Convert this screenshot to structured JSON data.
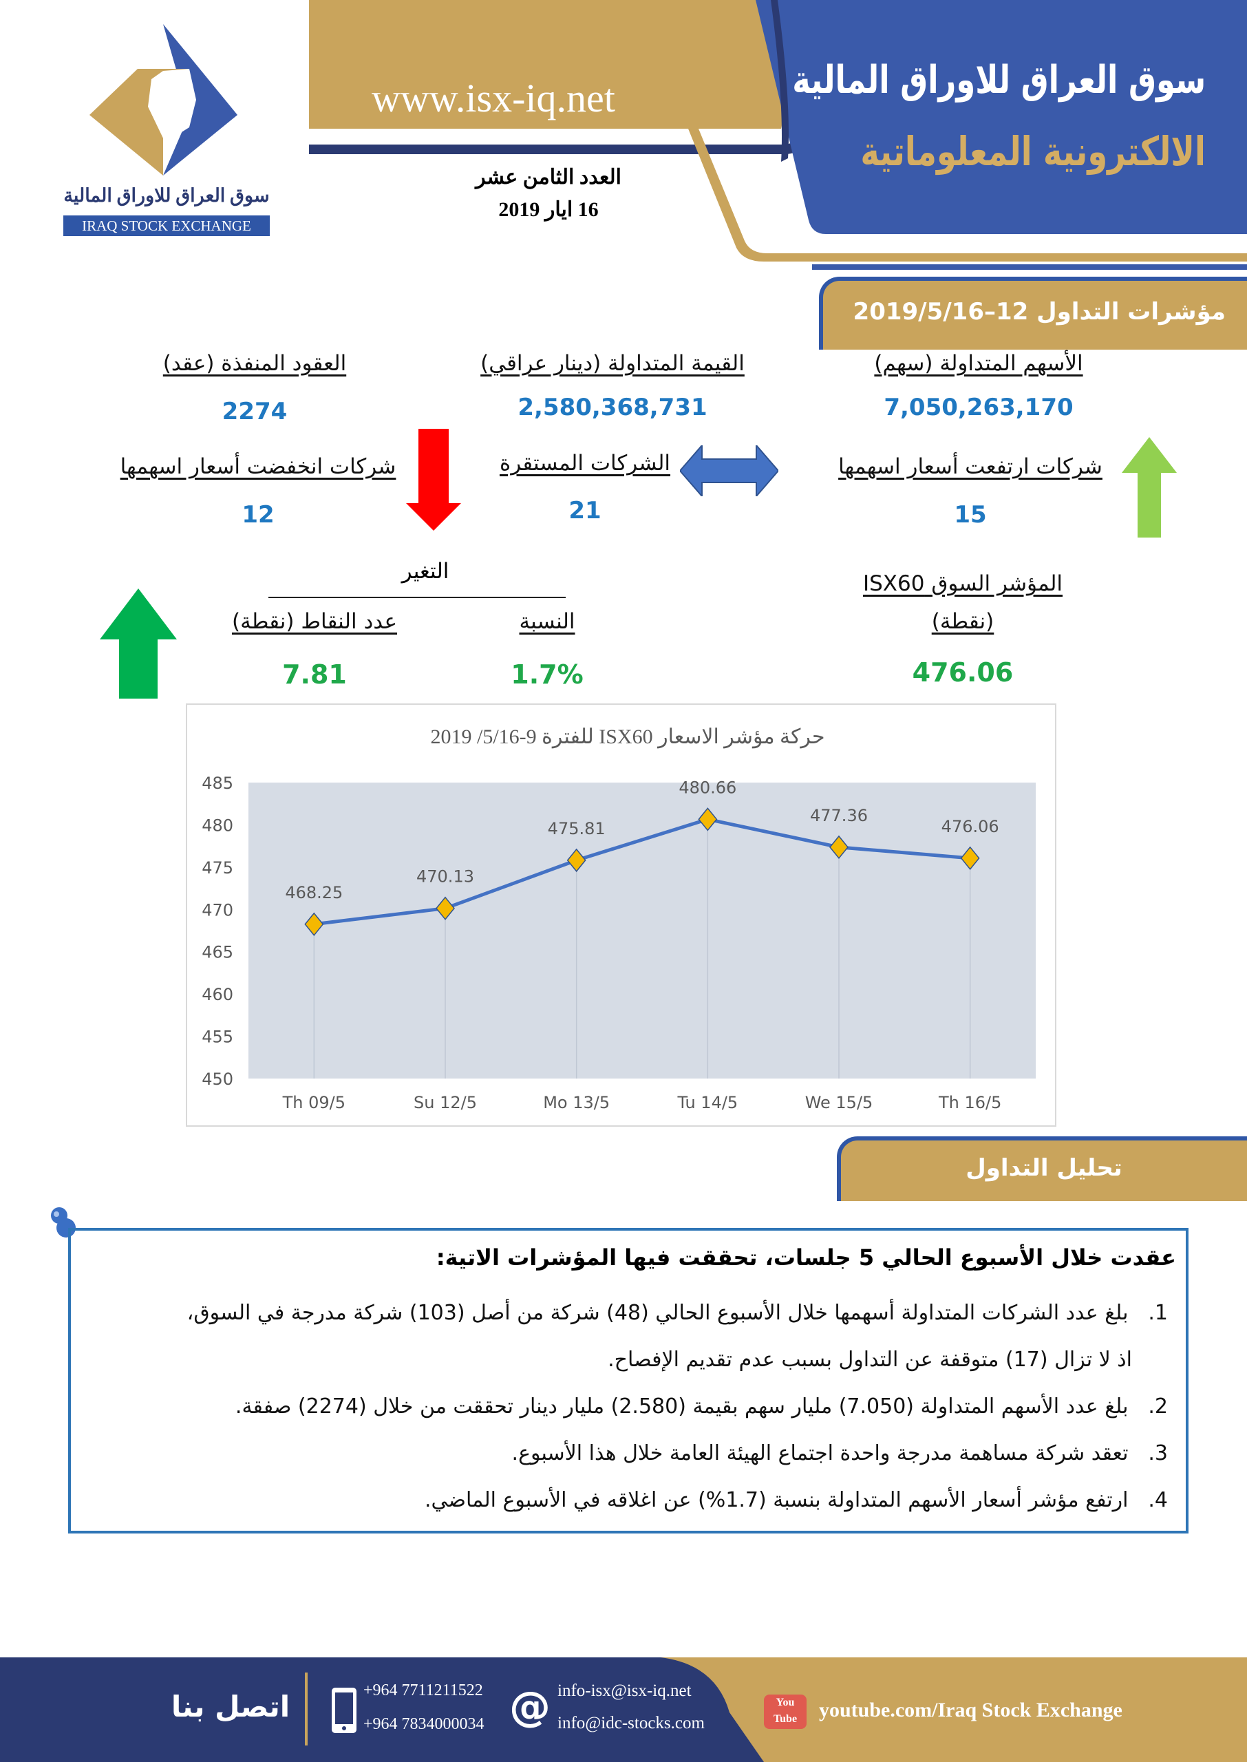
{
  "header": {
    "logo_text_ar": "سوق العراق للاوراق المالية",
    "logo_text_en": "IRAQ STOCK EXCHANGE",
    "website": "www.isx-iq.net",
    "title_line1": "سوق العراق للاوراق المالية",
    "title_line2": "الالكترونية المعلوماتية",
    "issue": "العدد الثامن عشر",
    "date": "16 ايار 2019",
    "colors": {
      "navy": "#2b3a72",
      "blue": "#3a5aaa",
      "gold": "#c9a45c"
    }
  },
  "indicators": {
    "section_title": "مؤشرات التداول 12–2019/5/16",
    "shares_label": "الأسهم المتداولة (سهم)",
    "shares_value": "7,050,263,170",
    "value_label": "القيمة المتداولة (دينار عراقي)",
    "value_value": "2,580,368,731",
    "contracts_label": "العقود المنفذة (عقد)",
    "contracts_value": "2274",
    "rising_label": "شركات ارتفعت أسعار اسهمها",
    "rising_value": "15",
    "stable_label": "الشركات المستقرة",
    "stable_value": "21",
    "falling_label": "شركات انخفضت أسعار اسهمها",
    "falling_value": "12",
    "index_label": "المؤشر السوق ISX60",
    "index_unit": "(نقطة)",
    "index_value": "476.06",
    "change_label": "التغير",
    "change_pct_label": "النسبة",
    "change_pct_value": "1.7%",
    "change_points_label": "عدد النقاط (نقطة)",
    "change_points_value": "7.81"
  },
  "chart_data": {
    "type": "line",
    "title": "حركة مؤشر الاسعار ISX60 للفترة 9-5/16/ 2019",
    "categories": [
      "Th 09/5",
      "Su 12/5",
      "Mo 13/5",
      "Tu 14/5",
      "We 15/5",
      "Th 16/5"
    ],
    "values": [
      468.25,
      470.13,
      475.81,
      480.66,
      477.36,
      476.06
    ],
    "data_labels": [
      "468.25",
      "470.13",
      "475.81",
      "480.66",
      "477.36",
      "476.06"
    ],
    "ylim": [
      450,
      485
    ],
    "yticks": [
      "450",
      "455",
      "460",
      "465",
      "470",
      "475",
      "480",
      "485"
    ],
    "xlabel": "",
    "ylabel": "",
    "grid": "vertical drop lines",
    "legend": "none",
    "colors": {
      "line": "#4472c4",
      "marker": "#f5b800",
      "plot_bg": "#d6dce5"
    }
  },
  "analysis": {
    "section_title": "تحليل التداول",
    "intro": "عقدت خلال الأسبوع الحالي 5 جلسات، تحققت فيها المؤشرات الاتية:",
    "items": [
      {
        "num": "1.",
        "line1": "بلغ عدد الشركات المتداولة أسهمها خلال الأسبوع الحالي (48) شركة من أصل (103) شركة مدرجة في السوق،",
        "line2": "اذ لا تزال (17) متوقفة عن التداول بسبب عدم تقديم الإفصاح."
      },
      {
        "num": "2.",
        "line1": "بلغ عدد الأسهم المتداولة (7.050) مليار سهم بقيمة (2.580) مليار دينار تحققت من خلال (2274) صفقة."
      },
      {
        "num": "3.",
        "line1": "تعقد شركة مساهمة مدرجة واحدة اجتماع الهيئة العامة خلال هذا الأسبوع."
      },
      {
        "num": "4.",
        "line1": "ارتفع مؤشر أسعار الأسهم المتداولة بنسبة (1.7%) عن اغلاقه في الأسبوع الماضي."
      }
    ]
  },
  "footer": {
    "contact_label": "اتصل بنا",
    "phone1": "+964 7711211522",
    "phone2": "+964 7834000034",
    "email1": "info-isx@isx-iq.net",
    "email2": "info@idc-stocks.com",
    "youtube_icon_text": "You Tube",
    "youtube": "youtube.com/Iraq Stock Exchange"
  }
}
